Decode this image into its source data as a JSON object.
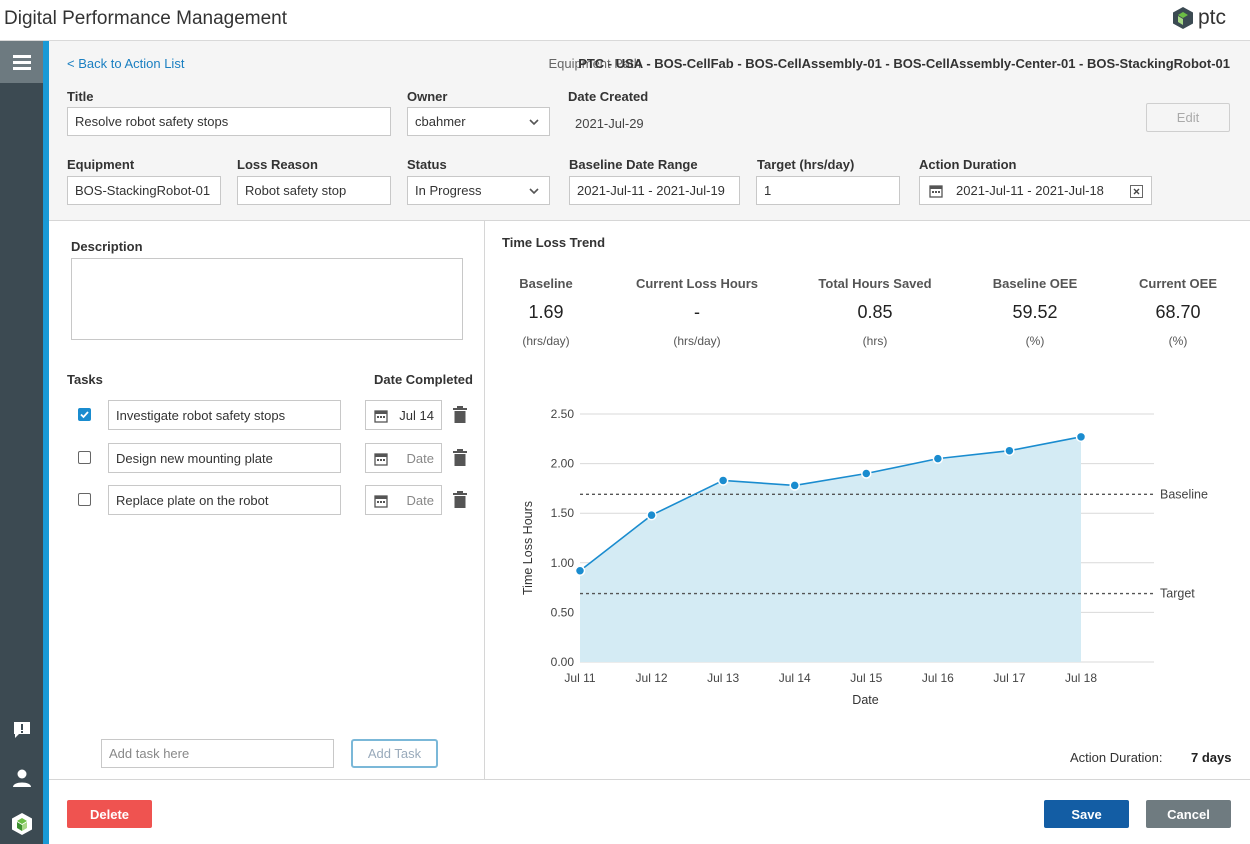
{
  "app": {
    "title": "Digital Performance Management",
    "brand": "ptc"
  },
  "header": {
    "back_link": "< Back to Action List",
    "equipment_path_label": "Equipment Path",
    "equipment_path": "PTC - USA - BOS-CellFab - BOS-CellAssembly-01 - BOS-CellAssembly-Center-01 - BOS-StackingRobot-01",
    "title_label": "Title",
    "title_value": "Resolve robot safety stops",
    "owner_label": "Owner",
    "owner_value": "cbahmer",
    "date_created_label": "Date Created",
    "date_created_value": "2021-Jul-29",
    "edit_label": "Edit",
    "equipment_label": "Equipment",
    "equipment_value": "BOS-StackingRobot-01",
    "loss_reason_label": "Loss Reason",
    "loss_reason_value": "Robot safety stop",
    "status_label": "Status",
    "status_value": "In Progress",
    "baseline_range_label": "Baseline Date Range",
    "baseline_range_value": "2021-Jul-11 - 2021-Jul-19",
    "target_label": "Target (hrs/day)",
    "target_value": "1",
    "action_duration_label": "Action Duration",
    "action_duration_value": "2021-Jul-11 - 2021-Jul-18"
  },
  "left": {
    "description_label": "Description",
    "description_value": "",
    "tasks_label": "Tasks",
    "date_completed_label": "Date Completed",
    "tasks": [
      {
        "name": "Investigate robot safety stops",
        "date": "Jul 14",
        "checked": true
      },
      {
        "name": "Design new mounting plate",
        "date": "Date",
        "checked": false
      },
      {
        "name": "Replace plate on the robot",
        "date": "Date",
        "checked": false
      }
    ],
    "add_task_placeholder": "Add task here",
    "add_task_button": "Add Task"
  },
  "right": {
    "trend_title": "Time Loss Trend",
    "stats": [
      {
        "label": "Baseline",
        "value": "1.69",
        "unit": "(hrs/day)"
      },
      {
        "label": "Current Loss Hours",
        "value": "-",
        "unit": "(hrs/day)"
      },
      {
        "label": "Total Hours Saved",
        "value": "0.85",
        "unit": "(hrs)"
      },
      {
        "label": "Baseline OEE",
        "value": "59.52",
        "unit": "(%)"
      },
      {
        "label": "Current OEE",
        "value": "68.70",
        "unit": "(%)"
      }
    ],
    "action_duration_label": "Action Duration:",
    "action_duration_value": "7 days"
  },
  "footer": {
    "delete_label": "Delete",
    "save_label": "Save",
    "cancel_label": "Cancel"
  },
  "colors": {
    "accent": "#1a9ad6",
    "delete": "#ef5350",
    "save": "#135da4",
    "cancel": "#6f7b80",
    "series": "#1a8ccf",
    "area": "#d4ebf4"
  },
  "chart_data": {
    "type": "area",
    "categories": [
      "Jul 11",
      "Jul 12",
      "Jul 13",
      "Jul 14",
      "Jul 15",
      "Jul 16",
      "Jul 17",
      "Jul 18"
    ],
    "values": [
      0.92,
      1.48,
      1.83,
      1.78,
      1.9,
      2.05,
      2.13,
      2.27
    ],
    "xlabel": "Date",
    "ylabel": "Time Loss Hours",
    "ylim": [
      0,
      2.5
    ],
    "yticks": [
      "0.00",
      "0.50",
      "1.00",
      "1.50",
      "2.00",
      "2.50"
    ],
    "reference_lines": [
      {
        "name": "Baseline",
        "value": 1.69
      },
      {
        "name": "Target",
        "value": 0.69
      }
    ],
    "grid": true
  }
}
